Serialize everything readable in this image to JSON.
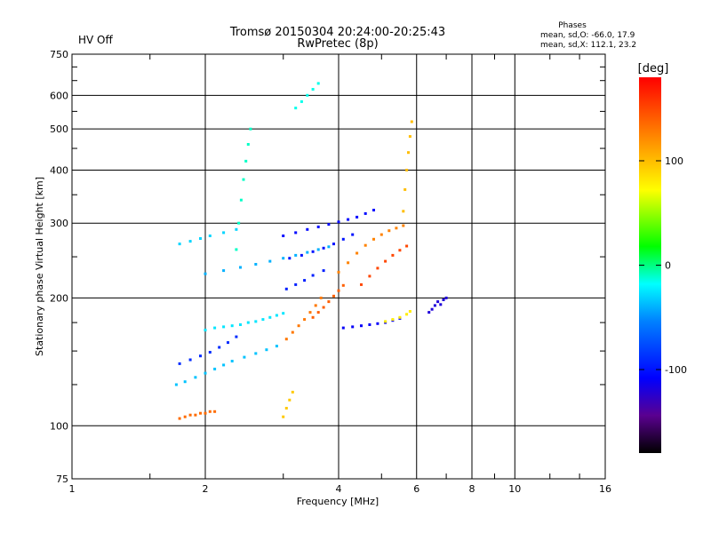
{
  "status": {
    "hv": "HV Off",
    "hv_color": "#cc0000"
  },
  "header": {
    "title_line1": "Tromsø 20150304 20:24:00-20:25:43",
    "title_line2": "RwPretec (8p)"
  },
  "stats": {
    "heading": "Phases",
    "line_o": "mean, sd,O: -66.0, 17.9",
    "line_x": "mean, sd,X: 112.1, 23.2"
  },
  "chart_data": {
    "type": "scatter",
    "xlabel": "Frequency [MHz]",
    "ylabel": "Stationary phase Virtual Height [km]",
    "x_scale": "log",
    "y_scale": "log",
    "xlim": [
      1,
      16
    ],
    "ylim": [
      75,
      750
    ],
    "x_ticks": [
      1,
      2,
      4,
      6,
      8,
      10,
      16
    ],
    "x_tick_labels": [
      "1",
      "2",
      "4",
      "6",
      "8",
      "10",
      "16"
    ],
    "x_minor_ticks": [
      1.5,
      3,
      5,
      7,
      9,
      12,
      14
    ],
    "y_ticks": [
      75,
      100,
      200,
      300,
      400,
      500,
      600,
      750
    ],
    "y_tick_labels": [
      "75",
      "100",
      "200",
      "300",
      "400",
      "500",
      "600",
      "750"
    ],
    "y_minor_ticks": [
      125,
      150,
      175,
      250,
      350,
      450,
      550,
      650,
      700
    ],
    "grid": true,
    "colorbar": {
      "label": "[deg]",
      "range": [
        -180,
        180
      ],
      "ticks": [
        100,
        0,
        -100
      ],
      "tick_labels": [
        "100",
        "0",
        "-100"
      ]
    },
    "traces": [
      {
        "name": "",
        "phase": -35,
        "x": [
          1.72,
          1.8,
          1.9,
          2.0,
          2.1,
          2.2,
          2.3,
          2.45,
          2.6,
          2.75,
          2.9
        ],
        "y": [
          125,
          127,
          130,
          133,
          136,
          139,
          142,
          145,
          148,
          151,
          154
        ]
      },
      {
        "name": "",
        "phase": -90,
        "x": [
          1.75,
          1.85,
          1.95,
          2.05,
          2.15,
          2.25,
          2.35
        ],
        "y": [
          140,
          143,
          146,
          149,
          153,
          157,
          162
        ]
      },
      {
        "name": "",
        "phase": -25,
        "x": [
          2.0,
          2.1,
          2.2,
          2.3,
          2.4,
          2.5,
          2.6,
          2.7,
          2.8,
          2.9,
          3.0
        ],
        "y": [
          168,
          170,
          171,
          172,
          173,
          175,
          176,
          178,
          180,
          182,
          184
        ]
      },
      {
        "name": "",
        "phase": -10,
        "x": [
          2.35,
          2.38,
          2.41,
          2.44,
          2.47,
          2.5,
          2.53
        ],
        "y": [
          260,
          300,
          340,
          380,
          420,
          460,
          500
        ]
      },
      {
        "name": "",
        "phase": -40,
        "x": [
          2.0,
          2.2,
          2.4,
          2.6,
          2.8,
          3.0,
          3.2,
          3.4,
          3.6,
          3.8
        ],
        "y": [
          228,
          232,
          236,
          240,
          244,
          248,
          252,
          256,
          260,
          264
        ]
      },
      {
        "name": "",
        "phase": -30,
        "x": [
          1.75,
          1.85,
          1.95,
          2.05,
          2.2,
          2.35
        ],
        "y": [
          268,
          272,
          276,
          280,
          285,
          290
        ]
      },
      {
        "name": "",
        "phase": -100,
        "x": [
          3.1,
          3.3,
          3.5,
          3.7,
          3.9,
          4.1,
          4.3
        ],
        "y": [
          248,
          252,
          257,
          262,
          268,
          275,
          282
        ]
      },
      {
        "name": "",
        "phase": -105,
        "x": [
          3.0,
          3.2,
          3.4,
          3.6,
          3.8,
          4.0,
          4.2,
          4.4,
          4.6,
          4.8
        ],
        "y": [
          280,
          285,
          290,
          294,
          298,
          302,
          306,
          310,
          316,
          322
        ]
      },
      {
        "name": "",
        "phase": -95,
        "x": [
          3.05,
          3.2,
          3.35,
          3.5,
          3.7
        ],
        "y": [
          210,
          215,
          220,
          226,
          232
        ]
      },
      {
        "name": "",
        "phase": 130,
        "x": [
          3.05,
          3.15,
          3.25,
          3.35,
          3.45,
          3.55,
          3.65
        ],
        "y": [
          160,
          166,
          172,
          178,
          185,
          192,
          200
        ]
      },
      {
        "name": "",
        "phase": 140,
        "x": [
          3.5,
          3.6,
          3.7,
          3.8,
          3.9,
          4.0,
          4.1
        ],
        "y": [
          180,
          185,
          190,
          196,
          202,
          208,
          214
        ]
      },
      {
        "name": "",
        "phase": 125,
        "x": [
          4.0,
          4.2,
          4.4,
          4.6,
          4.8,
          5.0,
          5.2,
          5.4,
          5.6
        ],
        "y": [
          230,
          242,
          255,
          266,
          275,
          282,
          288,
          292,
          296
        ]
      },
      {
        "name": "",
        "phase": 150,
        "x": [
          4.5,
          4.7,
          4.9,
          5.1,
          5.3,
          5.5,
          5.7
        ],
        "y": [
          215,
          225,
          235,
          244,
          252,
          259,
          265
        ]
      },
      {
        "name": "",
        "phase": 100,
        "x": [
          5.6,
          5.65,
          5.7,
          5.75,
          5.8,
          5.85
        ],
        "y": [
          320,
          360,
          400,
          440,
          480,
          520
        ]
      },
      {
        "name": "",
        "phase": -110,
        "x": [
          4.1,
          4.3,
          4.5,
          4.7,
          4.9,
          5.1,
          5.3,
          5.5
        ],
        "y": [
          170,
          171,
          172,
          173,
          174,
          175,
          177,
          179
        ]
      },
      {
        "name": "",
        "phase": 80,
        "x": [
          5.1,
          5.3,
          5.5,
          5.7,
          5.8
        ],
        "y": [
          176,
          178,
          180,
          183,
          186
        ]
      },
      {
        "name": "",
        "phase": 135,
        "x": [
          1.75,
          1.8,
          1.85,
          1.9,
          1.95,
          2.0,
          2.05,
          2.1
        ],
        "y": [
          104,
          105,
          106,
          106,
          107,
          107,
          108,
          108
        ]
      },
      {
        "name": "",
        "phase": 95,
        "x": [
          3.0,
          3.05,
          3.1,
          3.15
        ],
        "y": [
          105,
          110,
          115,
          120
        ]
      },
      {
        "name": "",
        "phase": -120,
        "x": [
          6.4,
          6.5,
          6.6,
          6.7,
          6.8,
          6.9,
          7.0
        ],
        "y": [
          185,
          188,
          192,
          196,
          193,
          198,
          200
        ]
      },
      {
        "name": "",
        "phase": -15,
        "x": [
          3.2,
          3.3,
          3.4,
          3.5,
          3.6
        ],
        "y": [
          560,
          580,
          600,
          620,
          640
        ]
      }
    ]
  }
}
